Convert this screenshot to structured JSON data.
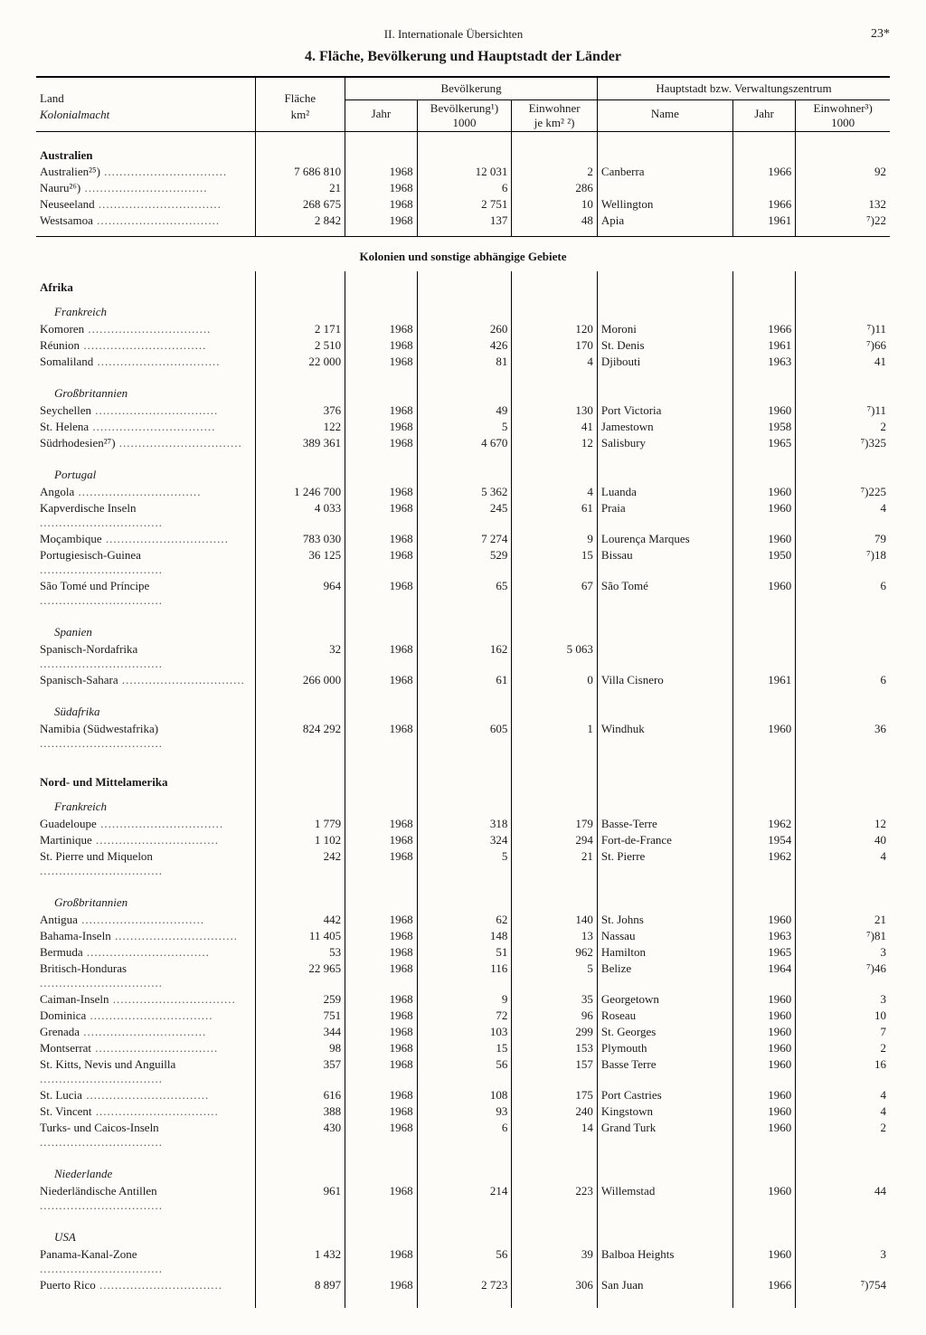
{
  "header": {
    "section": "II. Internationale Übersichten",
    "page": "23*"
  },
  "title": "4. Fläche, Bevölkerung und Hauptstadt der Länder",
  "thead": {
    "land": "Land",
    "land_sub": "Kolonialmacht",
    "flaeche": "Fläche",
    "flaeche_unit": "km²",
    "bev": "Bevölkerung",
    "jahr": "Jahr",
    "bev1000": "Bevölkerung¹)",
    "bev1000_unit": "1000",
    "einw_km2": "Einwohner",
    "einw_km2_unit": "je km² ²)",
    "haupt": "Hauptstadt bzw. Verwaltungszentrum",
    "name": "Name",
    "jahr2": "Jahr",
    "einw1000": "Einwohner³)",
    "einw1000_unit": "1000"
  },
  "sections": [
    {
      "region": "Australien",
      "powers": [
        {
          "name": null,
          "rows": [
            [
              "Australien²⁵)",
              "7 686 810",
              "1968",
              "12 031",
              "2",
              "Canberra",
              "1966",
              "92"
            ],
            [
              "Nauru²⁶)",
              "21",
              "1968",
              "6",
              "286",
              "",
              "",
              ""
            ],
            [
              "Neuseeland",
              "268 675",
              "1968",
              "2 751",
              "10",
              "Wellington",
              "1966",
              "132"
            ],
            [
              "Westsamoa",
              "2 842",
              "1968",
              "137",
              "48",
              "Apia",
              "1961",
              "⁷)22"
            ]
          ]
        }
      ]
    }
  ],
  "mid_title": "Kolonien und sonstige abhängige Gebiete",
  "colonies": [
    {
      "region": "Afrika",
      "powers": [
        {
          "name": "Frankreich",
          "rows": [
            [
              "Komoren",
              "2 171",
              "1968",
              "260",
              "120",
              "Moroni",
              "1966",
              "⁷)11"
            ],
            [
              "Réunion",
              "2 510",
              "1968",
              "426",
              "170",
              "St. Denis",
              "1961",
              "⁷)66"
            ],
            [
              "Somaliland",
              "22 000",
              "1968",
              "81",
              "4",
              "Djibouti",
              "1963",
              "41"
            ]
          ]
        },
        {
          "name": "Großbritannien",
          "rows": [
            [
              "Seychellen",
              "376",
              "1968",
              "49",
              "130",
              "Port Victoria",
              "1960",
              "⁷)11"
            ],
            [
              "St. Helena",
              "122",
              "1968",
              "5",
              "41",
              "Jamestown",
              "1958",
              "2"
            ],
            [
              "Südrhodesien²⁷)",
              "389 361",
              "1968",
              "4 670",
              "12",
              "Salisbury",
              "1965",
              "⁷)325"
            ]
          ]
        },
        {
          "name": "Portugal",
          "rows": [
            [
              "Angola",
              "1 246 700",
              "1968",
              "5 362",
              "4",
              "Luanda",
              "1960",
              "⁷)225"
            ],
            [
              "Kapverdische Inseln",
              "4 033",
              "1968",
              "245",
              "61",
              "Praia",
              "1960",
              "4"
            ],
            [
              "Moçambique",
              "783 030",
              "1968",
              "7 274",
              "9",
              "Lourença Marques",
              "1960",
              "79"
            ],
            [
              "Portugiesisch-Guinea",
              "36 125",
              "1968",
              "529",
              "15",
              "Bissau",
              "1950",
              "⁷)18"
            ],
            [
              "São Tomé und Príncipe",
              "964",
              "1968",
              "65",
              "67",
              "São Tomé",
              "1960",
              "6"
            ]
          ]
        },
        {
          "name": "Spanien",
          "rows": [
            [
              "Spanisch-Nordafrika",
              "32",
              "1968",
              "162",
              "5 063",
              "",
              "",
              ""
            ],
            [
              "Spanisch-Sahara",
              "266 000",
              "1968",
              "61",
              "0",
              "Villa Cisnero",
              "1961",
              "6"
            ]
          ]
        },
        {
          "name": "Südafrika",
          "rows": [
            [
              "Namibia (Südwestafrika)",
              "824 292",
              "1968",
              "605",
              "1",
              "Windhuk",
              "1960",
              "36"
            ]
          ]
        }
      ]
    },
    {
      "region": "Nord- und Mittelamerika",
      "powers": [
        {
          "name": "Frankreich",
          "rows": [
            [
              "Guadeloupe",
              "1 779",
              "1968",
              "318",
              "179",
              "Basse-Terre",
              "1962",
              "12"
            ],
            [
              "Martinique",
              "1 102",
              "1968",
              "324",
              "294",
              "Fort-de-France",
              "1954",
              "40"
            ],
            [
              "St. Pierre und Miquelon",
              "242",
              "1968",
              "5",
              "21",
              "St. Pierre",
              "1962",
              "4"
            ]
          ]
        },
        {
          "name": "Großbritannien",
          "rows": [
            [
              "Antigua",
              "442",
              "1968",
              "62",
              "140",
              "St. Johns",
              "1960",
              "21"
            ],
            [
              "Bahama-Inseln",
              "11 405",
              "1968",
              "148",
              "13",
              "Nassau",
              "1963",
              "⁷)81"
            ],
            [
              "Bermuda",
              "53",
              "1968",
              "51",
              "962",
              "Hamilton",
              "1965",
              "3"
            ],
            [
              "Britisch-Honduras",
              "22 965",
              "1968",
              "116",
              "5",
              "Belize",
              "1964",
              "⁷)46"
            ],
            [
              "Caiman-Inseln",
              "259",
              "1968",
              "9",
              "35",
              "Georgetown",
              "1960",
              "3"
            ],
            [
              "Dominica",
              "751",
              "1968",
              "72",
              "96",
              "Roseau",
              "1960",
              "10"
            ],
            [
              "Grenada",
              "344",
              "1968",
              "103",
              "299",
              "St. Georges",
              "1960",
              "7"
            ],
            [
              "Montserrat",
              "98",
              "1968",
              "15",
              "153",
              "Plymouth",
              "1960",
              "2"
            ],
            [
              "St. Kitts, Nevis und Anguilla",
              "357",
              "1968",
              "56",
              "157",
              "Basse Terre",
              "1960",
              "16"
            ],
            [
              "St. Lucia",
              "616",
              "1968",
              "108",
              "175",
              "Port Castries",
              "1960",
              "4"
            ],
            [
              "St. Vincent",
              "388",
              "1968",
              "93",
              "240",
              "Kingstown",
              "1960",
              "4"
            ],
            [
              "Turks- und Caicos-Inseln",
              "430",
              "1968",
              "6",
              "14",
              "Grand Turk",
              "1960",
              "2"
            ]
          ]
        },
        {
          "name": "Niederlande",
          "rows": [
            [
              "Niederländische Antillen",
              "961",
              "1968",
              "214",
              "223",
              "Willemstad",
              "1960",
              "44"
            ]
          ]
        },
        {
          "name": "USA",
          "rows": [
            [
              "Panama-Kanal-Zone",
              "1 432",
              "1968",
              "56",
              "39",
              "Balboa Heights",
              "1960",
              "3"
            ],
            [
              "Puerto Rico",
              "8 897",
              "1968",
              "2 723",
              "306",
              "San Juan",
              "1966",
              "⁷)754"
            ]
          ]
        }
      ]
    }
  ]
}
